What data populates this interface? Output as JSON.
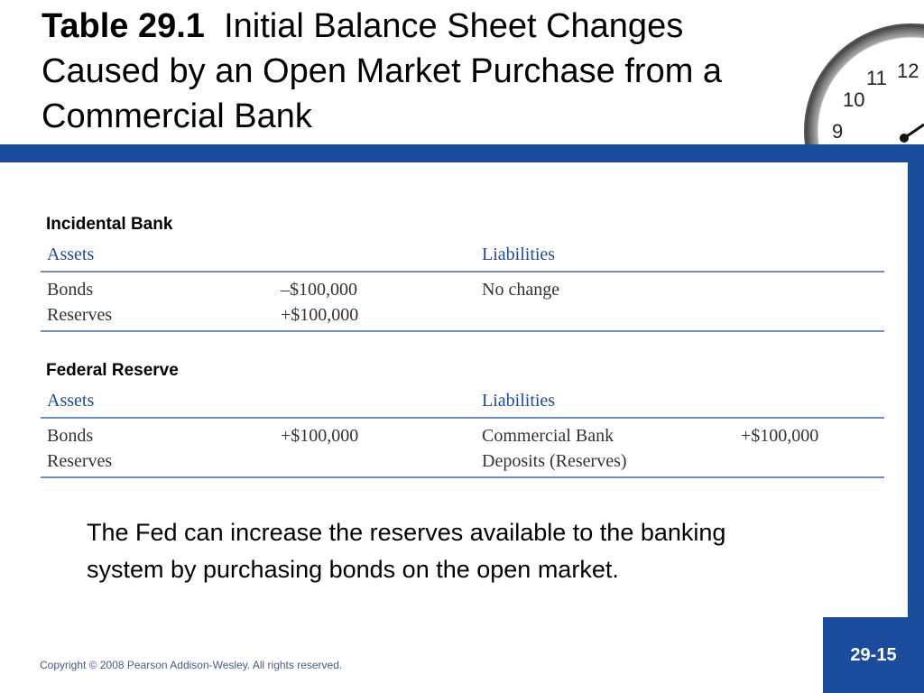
{
  "slide": {
    "title_number": "Table 29.1",
    "title_text": "Initial Balance Sheet Changes Caused by an Open Market Purchase from a Commercial Bank",
    "caption": "The Fed can increase the reserves available to the banking system by purchasing bonds on the open market.",
    "copyright": "Copyright © 2008 Pearson Addison-Wesley. All rights reserved.",
    "page_number": "29-15"
  },
  "clock": {
    "numerals": [
      "12",
      "11",
      "10",
      "9"
    ]
  },
  "sections": [
    {
      "title": "Incidental Bank",
      "assets_header": "Assets",
      "liabilities_header": "Liabilities",
      "assets": [
        {
          "label": "Bonds",
          "value": "–$100,000"
        },
        {
          "label": "Reserves",
          "value": "+$100,000"
        }
      ],
      "liabilities": [
        {
          "label": "No change",
          "value": ""
        },
        {
          "label": "",
          "value": ""
        }
      ]
    },
    {
      "title": "Federal Reserve",
      "assets_header": "Assets",
      "liabilities_header": "Liabilities",
      "assets": [
        {
          "label": "Bonds",
          "value": "+$100,000"
        },
        {
          "label": "Reserves",
          "value": ""
        }
      ],
      "liabilities": [
        {
          "label": "Commercial Bank",
          "value": "+$100,000"
        },
        {
          "label": "Deposits (Reserves)",
          "value": ""
        }
      ]
    }
  ],
  "colors": {
    "accent_blue": "#1a4b9c",
    "rule_blue": "#6d8fc9"
  }
}
